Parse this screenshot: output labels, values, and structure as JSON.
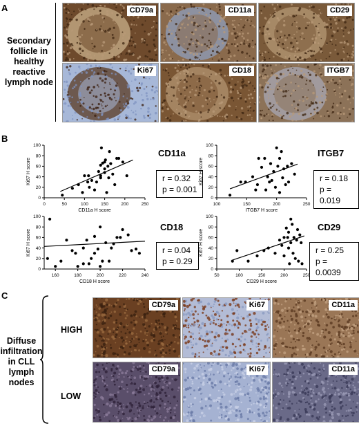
{
  "panelA": {
    "letter": "A",
    "side_label": [
      "Secondary",
      "follicle in",
      "healthy",
      "reactive",
      "lymph node"
    ],
    "tiles": [
      {
        "label": "CD79a",
        "bg": "#6e4a2c",
        "ring": "#c9b08a",
        "style": "follicle-brown"
      },
      {
        "label": "CD11a",
        "bg": "#8a6a4c",
        "ring": "#8e9fbc",
        "style": "follicle-ring"
      },
      {
        "label": "CD29",
        "bg": "#7a5a3a",
        "ring": "#b59a76",
        "style": "follicle-faint"
      },
      {
        "label": "Ki67",
        "bg": "#a7b8d8",
        "ring": "#5a3a22",
        "style": "follicle-ki67"
      },
      {
        "label": "CD18",
        "bg": "#7a5634",
        "ring": "#b39470",
        "style": "follicle-faint"
      },
      {
        "label": "ITGB7",
        "bg": "#8c7258",
        "ring": "#a8a8b4",
        "style": "follicle-ring"
      }
    ]
  },
  "panelB": {
    "letter": "B",
    "plots": [
      {
        "gene": "CD11a",
        "r": "r = 0.32",
        "p": "p = 0.001"
      },
      {
        "gene": "ITGB7",
        "r": "r = 0.18",
        "p": "p = 0.019"
      },
      {
        "gene": "CD18",
        "r": "r = 0.04",
        "p": "p = 0.29"
      },
      {
        "gene": "CD29",
        "r": "r = 0.25",
        "p": "p = 0.0039"
      }
    ]
  },
  "chart_data": [
    {
      "type": "scatter",
      "xlabel": "CD11a H score",
      "ylabel": "Ki67 H score",
      "xlim": [
        0,
        250
      ],
      "ylim": [
        0,
        100
      ],
      "xticks": [
        0,
        50,
        100,
        150,
        200,
        250
      ],
      "yticks": [
        0,
        20,
        40,
        60,
        80,
        100
      ],
      "x": [
        45,
        70,
        85,
        95,
        100,
        108,
        112,
        118,
        125,
        130,
        135,
        140,
        140,
        142,
        145,
        150,
        150,
        152,
        155,
        158,
        160,
        162,
        165,
        170,
        175,
        180,
        185,
        195,
        205,
        140,
        110,
        150
      ],
      "y": [
        5,
        18,
        25,
        10,
        42,
        30,
        20,
        33,
        15,
        30,
        50,
        38,
        62,
        95,
        66,
        55,
        48,
        72,
        10,
        60,
        38,
        88,
        65,
        45,
        25,
        75,
        75,
        68,
        42,
        42,
        42,
        68
      ],
      "trend": [
        [
          40,
          12
        ],
        [
          220,
          72
        ]
      ]
    },
    {
      "type": "scatter",
      "xlabel": "ITGB7 H score",
      "ylabel": "Ki67 H score",
      "xlim": [
        100,
        250
      ],
      "ylim": [
        0,
        100
      ],
      "xticks": [
        100,
        150,
        200,
        250
      ],
      "yticks": [
        0,
        20,
        40,
        60,
        80,
        100
      ],
      "x": [
        122,
        140,
        148,
        160,
        165,
        168,
        170,
        175,
        180,
        182,
        185,
        188,
        190,
        192,
        195,
        198,
        200,
        202,
        205,
        205,
        208,
        210,
        212,
        215,
        218,
        220,
        225,
        230
      ],
      "y": [
        5,
        30,
        30,
        40,
        15,
        25,
        75,
        58,
        75,
        15,
        40,
        30,
        65,
        33,
        50,
        20,
        95,
        60,
        10,
        75,
        88,
        38,
        55,
        25,
        60,
        30,
        65,
        45
      ],
      "trend": [
        [
          122,
          17
        ],
        [
          235,
          64
        ]
      ]
    },
    {
      "type": "scatter",
      "xlabel": "CD18 H score",
      "ylabel": "Ki67 H score",
      "xlim": [
        150,
        240
      ],
      "ylim": [
        0,
        100
      ],
      "xticks": [
        160,
        180,
        200,
        220,
        240
      ],
      "yticks": [
        0,
        20,
        40,
        60,
        80,
        100
      ],
      "x": [
        153,
        155,
        160,
        170,
        175,
        178,
        180,
        185,
        188,
        190,
        192,
        195,
        198,
        200,
        200,
        202,
        205,
        208,
        210,
        212,
        215,
        218,
        220,
        225,
        228,
        232,
        235,
        165,
        195,
        185
      ],
      "y": [
        20,
        95,
        5,
        55,
        35,
        30,
        5,
        10,
        55,
        10,
        20,
        62,
        38,
        5,
        80,
        15,
        50,
        15,
        40,
        48,
        60,
        60,
        75,
        65,
        35,
        38,
        30,
        15,
        30,
        40
      ],
      "trend": [
        [
          150,
          43
        ],
        [
          240,
          53
        ]
      ]
    },
    {
      "type": "scatter",
      "xlabel": "CD29 H score",
      "ylabel": "Ki67 H score",
      "xlim": [
        50,
        250
      ],
      "ylim": [
        0,
        100
      ],
      "xticks": [
        50,
        100,
        150,
        200,
        250
      ],
      "yticks": [
        0,
        20,
        40,
        60,
        80,
        100
      ],
      "x": [
        85,
        95,
        120,
        140,
        155,
        165,
        180,
        190,
        195,
        200,
        205,
        208,
        210,
        212,
        215,
        215,
        218,
        220,
        222,
        225,
        228,
        230,
        232,
        235,
        238,
        240,
        210,
        200
      ],
      "y": [
        15,
        35,
        15,
        25,
        35,
        40,
        30,
        55,
        45,
        25,
        78,
        60,
        40,
        10,
        95,
        50,
        85,
        30,
        60,
        20,
        55,
        75,
        15,
        65,
        50,
        10,
        70,
        60
      ],
      "trend": [
        [
          85,
          17
        ],
        [
          245,
          63
        ]
      ]
    }
  ],
  "panelC": {
    "letter": "C",
    "side_label": [
      "Diffuse",
      "infiltration",
      "in CLL",
      "lymph",
      "nodes"
    ],
    "rows": [
      {
        "level": "HIGH",
        "tiles": [
          {
            "label": "CD79a",
            "bg": "#6a4022",
            "dot": "#3a2010",
            "dot2": "#9a6a40"
          },
          {
            "label": "Ki67",
            "bg": "#b3bcd6",
            "dot": "#7a3a1a",
            "dot2": "#8a9ac0"
          },
          {
            "label": "CD11a",
            "bg": "#9a7656",
            "dot": "#5a3a20",
            "dot2": "#c0a080"
          }
        ]
      },
      {
        "level": "LOW",
        "tiles": [
          {
            "label": "CD79a",
            "bg": "#5a4e6a",
            "dot": "#2e2238",
            "dot2": "#8a7a98"
          },
          {
            "label": "Ki67",
            "bg": "#a5b2d2",
            "dot": "#6a7aa8",
            "dot2": "#c8d0e6"
          },
          {
            "label": "CD11a",
            "bg": "#6a6a88",
            "dot": "#3a3a58",
            "dot2": "#9898b4"
          }
        ]
      }
    ]
  }
}
